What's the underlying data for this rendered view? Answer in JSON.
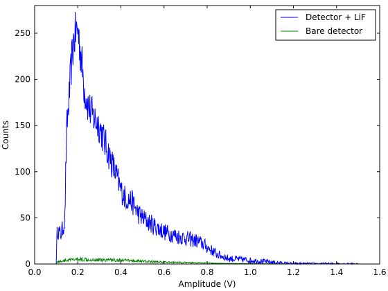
{
  "chart_data": {
    "type": "line",
    "xlabel": "Amplitude (V)",
    "ylabel": "Counts",
    "xlim": [
      0.0,
      1.6
    ],
    "ylim": [
      0,
      280
    ],
    "xticks": [
      "0.0",
      "0.2",
      "0.4",
      "0.6",
      "0.8",
      "1.0",
      "1.2",
      "1.4",
      "1.6"
    ],
    "yticks": [
      "0",
      "50",
      "100",
      "150",
      "200",
      "250"
    ],
    "legend_position": "top-right",
    "grid": false,
    "series": [
      {
        "name": "Detector + LiF",
        "color": "#0000ff",
        "x": [
          0.1,
          0.105,
          0.11,
          0.12,
          0.13,
          0.14,
          0.145,
          0.15,
          0.16,
          0.17,
          0.18,
          0.19,
          0.2,
          0.21,
          0.22,
          0.23,
          0.25,
          0.27,
          0.3,
          0.32,
          0.35,
          0.38,
          0.4,
          0.42,
          0.45,
          0.48,
          0.5,
          0.55,
          0.6,
          0.65,
          0.7,
          0.75,
          0.78,
          0.8,
          0.85,
          0.9,
          0.95,
          1.0,
          1.05,
          1.1,
          1.15,
          1.2,
          1.3,
          1.4,
          1.5
        ],
        "y": [
          0,
          40,
          35,
          32,
          38,
          48,
          110,
          150,
          180,
          215,
          240,
          250,
          255,
          235,
          215,
          190,
          170,
          160,
          150,
          135,
          115,
          95,
          80,
          72,
          68,
          55,
          50,
          42,
          35,
          31,
          28,
          25,
          22,
          18,
          10,
          6,
          5,
          4,
          3,
          2,
          1,
          0.5,
          0.3,
          0.2,
          0
        ]
      },
      {
        "name": "Bare detector",
        "color": "#008000",
        "x": [
          0.1,
          0.12,
          0.15,
          0.2,
          0.25,
          0.3,
          0.35,
          0.4,
          0.45,
          0.5,
          0.55,
          0.6,
          0.7,
          0.8,
          0.9,
          1.0,
          1.1,
          1.2,
          1.3,
          1.4,
          1.5
        ],
        "y": [
          2,
          3,
          4,
          5,
          5,
          4.5,
          4.5,
          4,
          3.5,
          3,
          2.5,
          2,
          1.5,
          1,
          0.5,
          0.3,
          0.2,
          0.1,
          0.05,
          0.02,
          0
        ]
      }
    ]
  }
}
